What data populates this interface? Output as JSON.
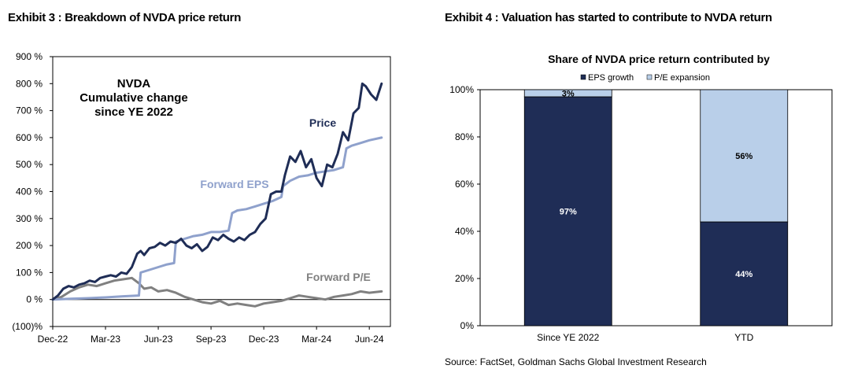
{
  "exhibit3": {
    "title": "Exhibit 3 : Breakdown of NVDA price return"
  },
  "exhibit4": {
    "title": "Exhibit 4 : Valuation has started to contribute to NVDA return"
  },
  "source": "Source: FactSet, Goldman Sachs Global Investment Research",
  "colors": {
    "price": "#1f2d56",
    "forward_eps": "#8fa1cc",
    "forward_pe": "#808080",
    "eps_growth": "#1f2d56",
    "pe_expansion": "#b9cfe9"
  },
  "chart_data": [
    {
      "type": "line",
      "title": "",
      "annotation_lines": [
        "NVDA",
        "Cumulative change",
        "since YE 2022"
      ],
      "ylim": [
        -100,
        900
      ],
      "y_ticks": [
        -100,
        0,
        100,
        200,
        300,
        400,
        500,
        600,
        700,
        800,
        900
      ],
      "y_tick_labels": [
        "(100)%",
        "0 %",
        "100 %",
        "200 %",
        "300 %",
        "400 %",
        "500 %",
        "600 %",
        "700 %",
        "800 %",
        "900 %"
      ],
      "x_tick_labels": [
        "Dec-22",
        "Mar-23",
        "Jun-23",
        "Sep-23",
        "Dec-23",
        "Mar-24",
        "Jun-24"
      ],
      "x_unit": "months since Dec-22",
      "grid": false,
      "series": [
        {
          "name": "Price",
          "x": [
            0,
            0.3,
            0.6,
            0.9,
            1.2,
            1.5,
            1.8,
            2.1,
            2.4,
            2.7,
            3.0,
            3.3,
            3.6,
            3.9,
            4.2,
            4.5,
            4.8,
            5.0,
            5.2,
            5.5,
            5.8,
            6.1,
            6.4,
            6.7,
            7.0,
            7.3,
            7.6,
            7.9,
            8.2,
            8.5,
            8.8,
            9.1,
            9.4,
            9.7,
            10.0,
            10.3,
            10.6,
            10.9,
            11.2,
            11.5,
            11.8,
            12.1,
            12.4,
            12.7,
            13.0,
            13.2,
            13.5,
            13.8,
            14.1,
            14.4,
            14.7,
            15.0,
            15.3,
            15.6,
            15.9,
            16.2,
            16.5,
            16.8,
            17.1,
            17.4,
            17.6,
            17.8,
            18.1,
            18.4,
            18.7
          ],
          "values": [
            0,
            15,
            40,
            50,
            45,
            55,
            60,
            70,
            65,
            80,
            85,
            90,
            85,
            100,
            95,
            120,
            170,
            180,
            165,
            190,
            195,
            210,
            200,
            215,
            210,
            225,
            200,
            190,
            205,
            180,
            195,
            230,
            220,
            240,
            225,
            215,
            230,
            220,
            240,
            250,
            280,
            300,
            390,
            400,
            400,
            460,
            530,
            510,
            550,
            490,
            520,
            450,
            420,
            500,
            490,
            540,
            620,
            590,
            690,
            710,
            800,
            790,
            760,
            740,
            800
          ]
        },
        {
          "name": "Forward EPS",
          "x": [
            0,
            1.0,
            2.0,
            3.0,
            4.0,
            4.9,
            5.0,
            5.5,
            6.0,
            6.5,
            6.9,
            7.0,
            7.5,
            8.0,
            8.5,
            9.0,
            9.5,
            10.0,
            10.2,
            10.5,
            11.0,
            11.5,
            12.0,
            12.5,
            13.0,
            13.1,
            13.5,
            14.0,
            14.5,
            15.0,
            15.5,
            16.0,
            16.5,
            16.7,
            17.0,
            17.5,
            18.0,
            18.7
          ],
          "values": [
            0,
            3,
            5,
            8,
            12,
            15,
            100,
            110,
            120,
            130,
            135,
            215,
            225,
            235,
            240,
            250,
            250,
            255,
            320,
            330,
            335,
            345,
            355,
            365,
            380,
            420,
            440,
            455,
            460,
            470,
            475,
            480,
            490,
            560,
            570,
            580,
            590,
            600
          ]
        },
        {
          "name": "Forward P/E",
          "x": [
            0,
            0.5,
            1.0,
            1.5,
            2.0,
            2.5,
            3.0,
            3.5,
            4.0,
            4.5,
            4.9,
            5.2,
            5.6,
            6.0,
            6.5,
            7.0,
            7.5,
            8.0,
            8.5,
            9.0,
            9.5,
            10.0,
            10.5,
            11.0,
            11.5,
            12.0,
            12.5,
            13.0,
            13.5,
            14.0,
            14.5,
            15.0,
            15.5,
            16.0,
            16.5,
            17.0,
            17.5,
            18.0,
            18.7
          ],
          "values": [
            0,
            10,
            30,
            45,
            55,
            50,
            60,
            70,
            75,
            80,
            60,
            40,
            45,
            30,
            35,
            25,
            10,
            0,
            -10,
            -15,
            -5,
            -20,
            -15,
            -20,
            -25,
            -15,
            -10,
            -5,
            5,
            15,
            10,
            5,
            0,
            10,
            15,
            20,
            30,
            25,
            30
          ]
        }
      ]
    },
    {
      "type": "bar",
      "stacked": true,
      "title": "Share of NVDA price return contributed by",
      "categories": [
        "Since YE 2022",
        "YTD"
      ],
      "ylim": [
        0,
        100
      ],
      "y_tick_labels": [
        "0%",
        "20%",
        "40%",
        "60%",
        "80%",
        "100%"
      ],
      "legend_position": "top",
      "series": [
        {
          "name": "EPS growth",
          "values": [
            97,
            44
          ],
          "labels": [
            "97%",
            "44%"
          ]
        },
        {
          "name": "P/E expansion",
          "values": [
            3,
            56
          ],
          "labels": [
            "3%",
            "56%"
          ]
        }
      ]
    }
  ]
}
